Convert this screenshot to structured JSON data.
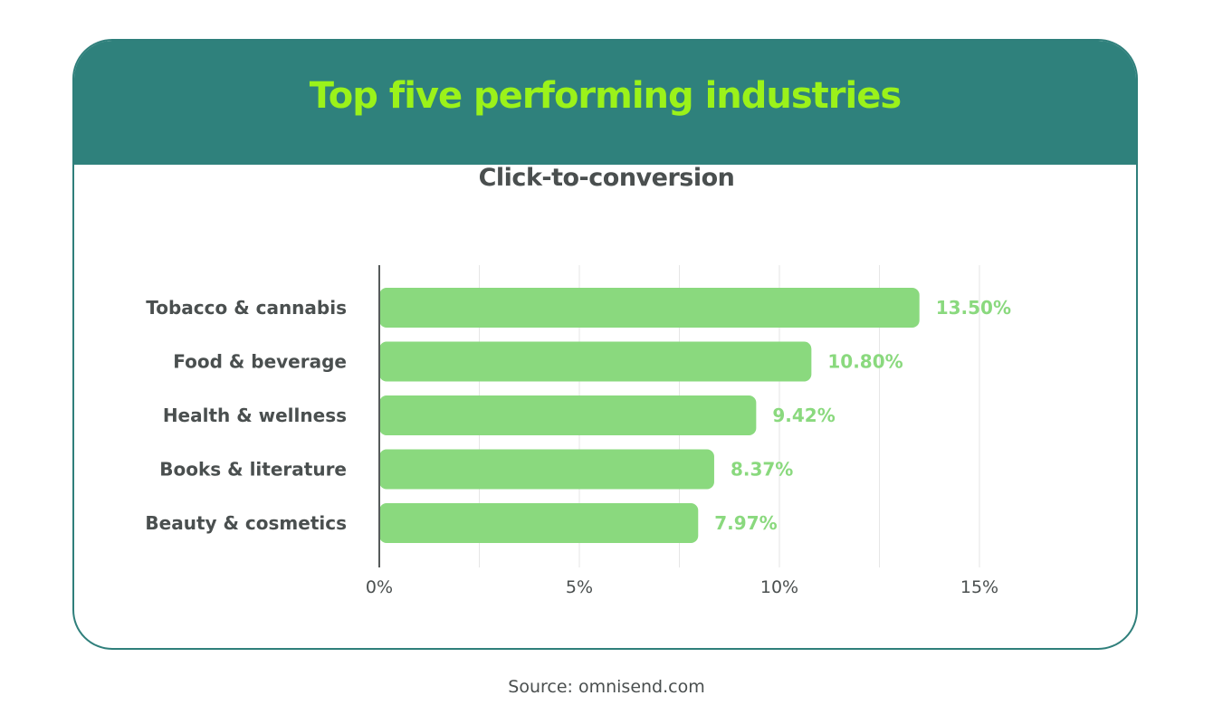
{
  "header": {
    "title": "Top five performing industries"
  },
  "colors": {
    "header_bg": "#2f817c",
    "title_text": "#9bf21a",
    "bar_fill": "#8ad97e",
    "value_label": "#8ad97e",
    "axis_text": "#4a4f4f",
    "grid": "#e6e6e6"
  },
  "chart_data": {
    "type": "bar",
    "orientation": "horizontal",
    "title": "Click-to-conversion",
    "categories": [
      "Tobacco & cannabis",
      "Food & beverage",
      "Health & wellness",
      "Books & literature",
      "Beauty & cosmetics"
    ],
    "values": [
      13.5,
      10.8,
      9.42,
      8.37,
      7.97
    ],
    "value_labels": [
      "13.50%",
      "10.80%",
      "9.42%",
      "8.37%",
      "7.97%"
    ],
    "xlim": [
      0,
      15
    ],
    "x_ticks": [
      0,
      5,
      10,
      15
    ],
    "x_tick_labels": [
      "0%",
      "5%",
      "10%",
      "15%"
    ],
    "grid": true
  },
  "footer": {
    "source": "Source: omnisend.com"
  }
}
